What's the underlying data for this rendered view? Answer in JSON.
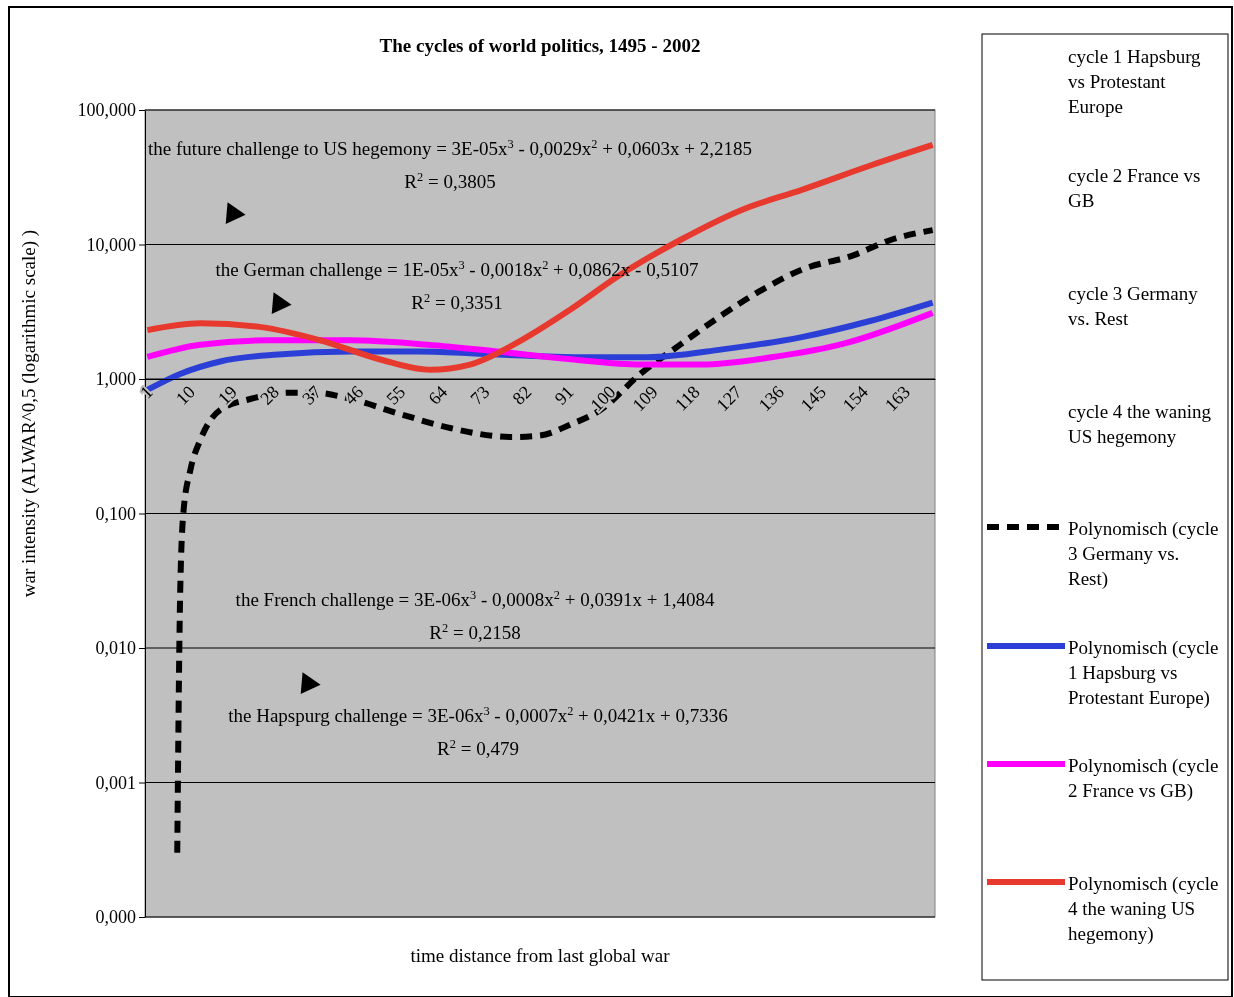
{
  "chart_data": {
    "type": "line",
    "title": "The cycles of world politics, 1495 - 2002",
    "xlabel": "time distance from last global war",
    "ylabel": "war intensity (ALWAR^0,5 (logarithmic scale) )",
    "log": "y",
    "grid": "y",
    "legend": "right",
    "xlim": [
      0.5,
      169.5
    ],
    "xticks": [
      1,
      10,
      19,
      28,
      37,
      46,
      55,
      64,
      73,
      82,
      91,
      100,
      109,
      118,
      127,
      136,
      145,
      154,
      163
    ],
    "ylim": [
      0.0001,
      100
    ],
    "yticks": [
      {
        "value": 0.0001,
        "label": "0,000"
      },
      {
        "value": 0.001,
        "label": "0,001"
      },
      {
        "value": 0.01,
        "label": "0,010"
      },
      {
        "value": 0.1,
        "label": "0,100"
      },
      {
        "value": 1,
        "label": "1,000"
      },
      {
        "value": 10,
        "label": "10,000"
      },
      {
        "value": 100,
        "label": "100,000"
      }
    ],
    "series": [
      {
        "name": "Polynomisch (cycle 3 Germany vs. Rest)",
        "color": "#000000",
        "line_style": "dashed",
        "x": [
          7.4,
          8,
          8.7,
          10.2,
          12.3,
          16.6,
          23,
          31.6,
          37,
          44.5,
          55,
          66,
          79,
          85,
          91.6,
          98,
          106.6,
          115,
          124,
          132.5,
          141,
          152,
          160,
          169
        ],
        "values": [
          0.0003,
          0.023,
          0.1,
          0.21,
          0.35,
          0.59,
          0.71,
          0.79,
          0.79,
          0.71,
          0.55,
          0.43,
          0.37,
          0.38,
          0.46,
          0.59,
          1.1,
          1.8,
          3,
          4.6,
          6.5,
          8.3,
          10.8,
          12.8
        ]
      },
      {
        "name": "Polynomisch (cycle 1 Hapsburg vs Protestant Europe)",
        "color": "#2b3fd6",
        "line_style": "solid",
        "x": [
          1,
          8,
          16.6,
          29,
          44.5,
          59,
          76,
          93.5,
          108,
          124,
          141,
          155.6,
          169
        ],
        "values": [
          0.83,
          1.09,
          1.35,
          1.52,
          1.6,
          1.6,
          1.52,
          1.45,
          1.45,
          1.66,
          2.05,
          2.7,
          3.7
        ]
      },
      {
        "name": "Polynomisch (cycle 2 France vs GB)",
        "color": "#ff00ff",
        "line_style": "solid",
        "x": [
          1,
          12.3,
          27,
          44.5,
          61,
          76,
          91.6,
          106.6,
          119.5,
          134.5,
          150,
          169
        ],
        "values": [
          1.46,
          1.8,
          1.94,
          1.94,
          1.8,
          1.6,
          1.4,
          1.28,
          1.28,
          1.45,
          1.83,
          3.1
        ]
      },
      {
        "name": "Polynomisch (cycle 4 the waning US hegemony)",
        "color": "#e8392f",
        "line_style": "solid",
        "x": [
          1,
          12.3,
          25,
          38,
          51,
          61.5,
          70,
          81,
          91.6,
          102,
          115,
          128,
          141,
          156,
          169
        ],
        "values": [
          2.31,
          2.6,
          2.44,
          1.94,
          1.39,
          1.17,
          1.28,
          1.94,
          3.3,
          5.9,
          10.8,
          18,
          25.5,
          39,
          55
        ]
      }
    ],
    "annotations": [
      "the future challenge to US hegemony = 3E-05x$^{3}$ - 0,0029x$^{2}$ + 0,0603x + 2,2185",
      "R$^{2}$ = 0,3805",
      "the German challenge = 1E-05x$^{3}$ - 0,0018x$^{2}$ + 0,0862x - 0,5107",
      "R$^{2}$ = 0,3351",
      "the French challenge = 3E-06x$^{3}$ - 0,0008x$^{2}$ + 0,0391x + 1,4084",
      "R$^{2}$ = 0,2158",
      "the Hapspurg challenge = 3E-06x$^{3}$ - 0,0007x$^{2}$ + 0,0421x + 0,7336",
      "R$^{2}$ = 0,479",
      "cycle 1 Hapsburg vs Protestant Europe",
      "cycle 2 France vs GB",
      "cycle 3 Germany vs. Rest",
      "cycle 4 the waning US hegemony"
    ]
  }
}
